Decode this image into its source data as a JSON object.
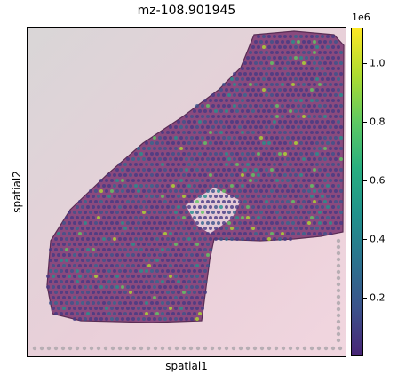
{
  "chart_data": {
    "type": "scatter",
    "title": "mz-108.901945",
    "xlabel": "spatial1",
    "ylabel": "spatial2",
    "colorbar": {
      "multiplier": "1e6",
      "range": [
        0.0,
        1.12
      ],
      "ticks": [
        0.2,
        0.4,
        0.6,
        0.8,
        1.0
      ],
      "tick_labels": [
        "0.2",
        "0.4",
        "0.6",
        "0.8",
        "1.0"
      ],
      "colormap": "viridis"
    },
    "background": "H&E tissue section (pink/purple) behind spatial spots",
    "spot_values_note": "most spots ~0.15–0.35 (×1e6); scattered high spots up to ~0.9",
    "grid": false,
    "xticks": [],
    "yticks": []
  }
}
